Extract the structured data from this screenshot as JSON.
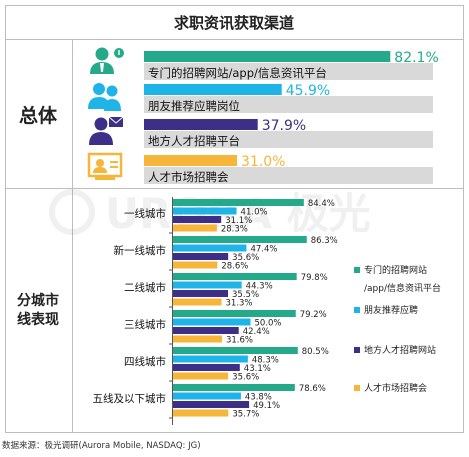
{
  "title": "求职资讯获取渠道",
  "sections": {
    "overall_label": "总体",
    "city_label_line1": "分城市",
    "city_label_line2": "线表现"
  },
  "colors": {
    "ch1": "#24a98a",
    "ch2": "#1fb4e8",
    "ch3": "#3d2f87",
    "ch4": "#f5b63a",
    "track": "#d9d9d9",
    "border": "#bdbdbd"
  },
  "overall": {
    "icons": [
      "recruiter-badge-icon",
      "people-pair-icon",
      "manager-mail-icon",
      "job-fair-card-icon"
    ]
  },
  "legend": {
    "items": [
      {
        "line1": "专门的招聘网站",
        "line2": "/app/信息资讯平台"
      },
      {
        "line1": "朋友推荐应聘",
        "line2": ""
      },
      {
        "line1": "地方人才招聘网站",
        "line2": ""
      },
      {
        "line1": "人才市场招聘会",
        "line2": ""
      }
    ]
  },
  "chart_data": [
    {
      "type": "bar",
      "orientation": "horizontal",
      "categories": [
        "专门的招聘网站/app/信息资讯平台",
        "朋友推荐应聘岗位",
        "地方人才招聘平台",
        "人才市场招聘会"
      ],
      "values": [
        82.1,
        45.9,
        37.9,
        31.0
      ],
      "value_labels": [
        "82.1%",
        "45.9%",
        "37.9%",
        "31.0%"
      ],
      "xlim": [
        0,
        100
      ],
      "label": "总体"
    },
    {
      "type": "bar",
      "orientation": "horizontal",
      "grouped": true,
      "categories": [
        "一线城市",
        "新一线城市",
        "二线城市",
        "三线城市",
        "四线城市",
        "五线及以下城市"
      ],
      "series": [
        {
          "name": "专门的招聘网站/app/信息资讯平台",
          "values": [
            84.4,
            86.3,
            79.8,
            79.2,
            80.5,
            78.6
          ]
        },
        {
          "name": "朋友推荐应聘",
          "values": [
            41.0,
            47.4,
            44.3,
            50.0,
            48.3,
            43.8
          ]
        },
        {
          "name": "地方人才招聘网站",
          "values": [
            31.1,
            35.6,
            35.5,
            42.4,
            43.1,
            49.1
          ]
        },
        {
          "name": "人才市场招聘会",
          "values": [
            28.3,
            28.6,
            31.3,
            31.6,
            35.6,
            35.7
          ]
        }
      ],
      "value_labels": [
        [
          "84.4%",
          "86.3%",
          "79.8%",
          "79.2%",
          "80.5%",
          "78.6%"
        ],
        [
          "41.0%",
          "47.4%",
          "44.3%",
          "50.0%",
          "48.3%",
          "43.8%"
        ],
        [
          "31.1%",
          "35.6%",
          "35.5%",
          "42.4%",
          "43.1%",
          "49.1%"
        ],
        [
          "28.3%",
          "28.6%",
          "31.3%",
          "31.6%",
          "35.6%",
          "35.7%"
        ]
      ],
      "xlim": [
        0,
        100
      ],
      "legend": "right",
      "label": "分城市线表现"
    }
  ],
  "source": "数据来源：极光调研(Aurora Mobile, NASDAQ: JG)"
}
